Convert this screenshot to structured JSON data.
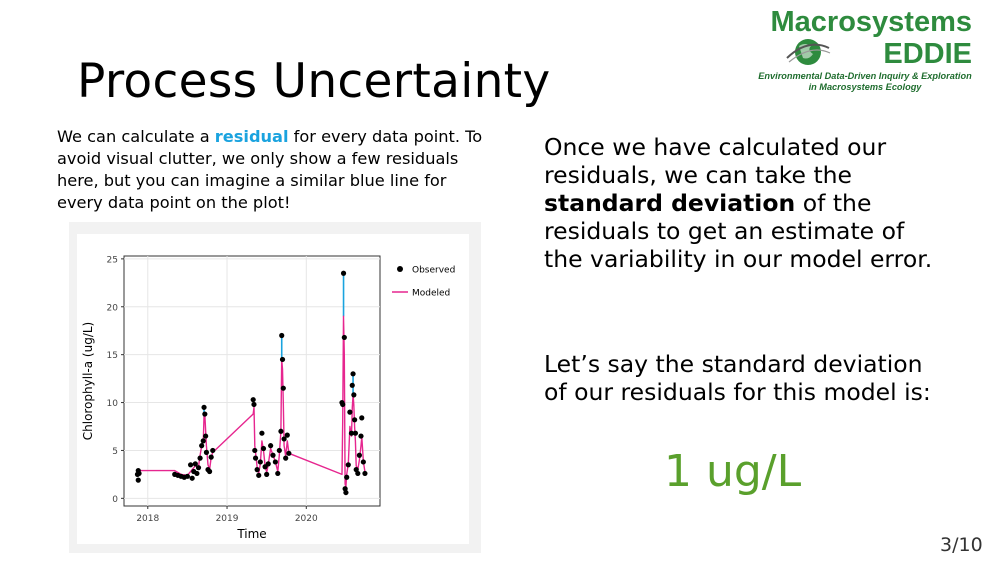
{
  "slide": {
    "title": "Process Uncertainty",
    "page_number": "3/10"
  },
  "logo": {
    "line1": "Macrosystems",
    "line2": "EDDIE",
    "subtitle_line1": "Environmental Data-Driven Inquiry & Exploration",
    "subtitle_line2": "in Macrosystems Ecology",
    "icon": "globe-icon"
  },
  "left_text": {
    "part1": "We can calculate a ",
    "highlight": "residual",
    "part2": " for every data point. To avoid visual clutter, we only show a few residuals here, but you can imagine a similar blue line for every data point on the plot!"
  },
  "right_text": {
    "p1_part1": "Once we have calculated our residuals, we can take the ",
    "p1_bold": "standard deviation",
    "p1_part2": " of the residuals to get an estimate of the variability in our model error.",
    "p2": "Let’s say the standard deviation of our residuals for this model is:",
    "value": "1 ug/L"
  },
  "colors": {
    "highlight": "#1aa3df",
    "value": "#5aa02c",
    "logo_green": "#2e8b3e",
    "modeled": "#e6268f",
    "residual": "#1aa3df",
    "observed": "#000000"
  },
  "chart_data": {
    "type": "line",
    "xlabel": "Time",
    "ylabel": "Chlorophyll-a (ug/L)",
    "x_ticks": [
      "2018",
      "2019",
      "2020"
    ],
    "y_ticks": [
      0,
      5,
      10,
      15,
      20,
      25
    ],
    "xlim": [
      2017.7,
      2020.93
    ],
    "ylim": [
      -0.8,
      25.3
    ],
    "grid": true,
    "legend_position": "right",
    "legend": [
      {
        "name": "Observed",
        "marker": "point"
      },
      {
        "name": "Modeled",
        "marker": "line"
      }
    ],
    "observed": [
      [
        2017.87,
        2.5
      ],
      [
        2017.88,
        1.9
      ],
      [
        2017.88,
        2.9
      ],
      [
        2017.89,
        2.6
      ],
      [
        2018.34,
        2.5
      ],
      [
        2018.38,
        2.4
      ],
      [
        2018.42,
        2.3
      ],
      [
        2018.46,
        2.2
      ],
      [
        2018.5,
        2.3
      ],
      [
        2018.54,
        3.5
      ],
      [
        2018.56,
        2.1
      ],
      [
        2018.58,
        2.8
      ],
      [
        2018.6,
        3.6
      ],
      [
        2018.62,
        2.6
      ],
      [
        2018.64,
        3.2
      ],
      [
        2018.66,
        4.2
      ],
      [
        2018.68,
        5.5
      ],
      [
        2018.7,
        6.0
      ],
      [
        2018.71,
        9.5
      ],
      [
        2018.72,
        8.8
      ],
      [
        2018.73,
        6.5
      ],
      [
        2018.74,
        4.8
      ],
      [
        2018.76,
        3.0
      ],
      [
        2018.78,
        2.8
      ],
      [
        2018.8,
        4.3
      ],
      [
        2018.82,
        5.0
      ],
      [
        2019.33,
        10.3
      ],
      [
        2019.34,
        9.8
      ],
      [
        2019.35,
        5.0
      ],
      [
        2019.36,
        4.2
      ],
      [
        2019.38,
        3.0
      ],
      [
        2019.4,
        2.4
      ],
      [
        2019.42,
        3.8
      ],
      [
        2019.44,
        6.8
      ],
      [
        2019.46,
        5.2
      ],
      [
        2019.48,
        3.3
      ],
      [
        2019.5,
        2.5
      ],
      [
        2019.52,
        3.6
      ],
      [
        2019.55,
        5.5
      ],
      [
        2019.58,
        4.5
      ],
      [
        2019.61,
        3.8
      ],
      [
        2019.64,
        2.6
      ],
      [
        2019.66,
        5.0
      ],
      [
        2019.68,
        7.0
      ],
      [
        2019.69,
        17.0
      ],
      [
        2019.7,
        14.5
      ],
      [
        2019.71,
        11.5
      ],
      [
        2019.72,
        6.2
      ],
      [
        2019.74,
        4.2
      ],
      [
        2019.76,
        6.6
      ],
      [
        2019.78,
        4.7
      ],
      [
        2020.45,
        10.0
      ],
      [
        2020.46,
        9.8
      ],
      [
        2020.47,
        23.5
      ],
      [
        2020.48,
        16.8
      ],
      [
        2020.49,
        1.0
      ],
      [
        2020.5,
        0.6
      ],
      [
        2020.51,
        2.2
      ],
      [
        2020.53,
        3.5
      ],
      [
        2020.55,
        9.0
      ],
      [
        2020.57,
        6.8
      ],
      [
        2020.58,
        11.8
      ],
      [
        2020.59,
        13.0
      ],
      [
        2020.6,
        10.8
      ],
      [
        2020.61,
        8.2
      ],
      [
        2020.62,
        6.8
      ],
      [
        2020.63,
        3.0
      ],
      [
        2020.65,
        2.6
      ],
      [
        2020.67,
        4.5
      ],
      [
        2020.69,
        6.5
      ],
      [
        2020.7,
        8.4
      ],
      [
        2020.72,
        3.8
      ],
      [
        2020.74,
        2.6
      ]
    ],
    "modeled": [
      [
        2017.87,
        2.9
      ],
      [
        2018.34,
        2.9
      ],
      [
        2018.42,
        2.5
      ],
      [
        2018.5,
        2.4
      ],
      [
        2018.56,
        3.0
      ],
      [
        2018.6,
        3.4
      ],
      [
        2018.64,
        3.3
      ],
      [
        2018.66,
        4.5
      ],
      [
        2018.68,
        5.5
      ],
      [
        2018.7,
        6.0
      ],
      [
        2018.71,
        8.5
      ],
      [
        2018.72,
        8.8
      ],
      [
        2018.74,
        5.5
      ],
      [
        2018.76,
        3.5
      ],
      [
        2018.78,
        3.0
      ],
      [
        2018.8,
        4.3
      ],
      [
        2018.82,
        4.8
      ],
      [
        2019.33,
        8.8
      ],
      [
        2019.34,
        9.5
      ],
      [
        2019.35,
        5.5
      ],
      [
        2019.38,
        3.2
      ],
      [
        2019.4,
        2.6
      ],
      [
        2019.42,
        3.6
      ],
      [
        2019.44,
        6.0
      ],
      [
        2019.46,
        5.0
      ],
      [
        2019.48,
        3.4
      ],
      [
        2019.5,
        2.7
      ],
      [
        2019.52,
        3.5
      ],
      [
        2019.55,
        5.2
      ],
      [
        2019.58,
        4.5
      ],
      [
        2019.61,
        3.8
      ],
      [
        2019.64,
        2.8
      ],
      [
        2019.66,
        4.5
      ],
      [
        2019.68,
        7.0
      ],
      [
        2019.69,
        14.5
      ],
      [
        2019.7,
        13.5
      ],
      [
        2019.71,
        10.0
      ],
      [
        2019.72,
        5.5
      ],
      [
        2019.74,
        4.4
      ],
      [
        2019.76,
        6.0
      ],
      [
        2019.78,
        4.7
      ],
      [
        2020.45,
        2.5
      ],
      [
        2020.46,
        8.0
      ],
      [
        2020.47,
        19.0
      ],
      [
        2020.48,
        15.0
      ],
      [
        2020.49,
        1.5
      ],
      [
        2020.5,
        1.2
      ],
      [
        2020.51,
        2.5
      ],
      [
        2020.53,
        3.6
      ],
      [
        2020.55,
        7.5
      ],
      [
        2020.57,
        6.5
      ],
      [
        2020.58,
        9.5
      ],
      [
        2020.59,
        10.8
      ],
      [
        2020.6,
        9.8
      ],
      [
        2020.61,
        7.5
      ],
      [
        2020.62,
        6.0
      ],
      [
        2020.63,
        3.4
      ],
      [
        2020.65,
        3.0
      ],
      [
        2020.67,
        4.0
      ],
      [
        2020.69,
        5.5
      ],
      [
        2020.7,
        6.4
      ],
      [
        2020.72,
        3.8
      ],
      [
        2020.74,
        2.8
      ]
    ],
    "residuals": [
      {
        "x": 2019.69,
        "observed": 17.0,
        "modeled": 14.5
      },
      {
        "x": 2020.47,
        "observed": 23.5,
        "modeled": 19.0
      },
      {
        "x": 2020.59,
        "observed": 13.0,
        "modeled": 10.8
      },
      {
        "x": 2018.71,
        "observed": 9.5,
        "modeled": 8.5
      }
    ]
  }
}
